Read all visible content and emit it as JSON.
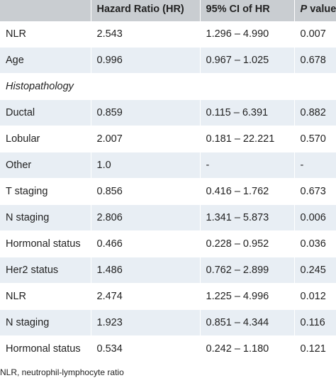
{
  "header": {
    "col0": "",
    "col1": "Hazard Ratio (HR)",
    "col2": "95% CI of HR",
    "col3_italic": "P",
    "col3_rest": " value"
  },
  "rows": [
    {
      "label": "NLR",
      "hr": "2.543",
      "ci": "1.296 – 4.990",
      "p": "0.007"
    },
    {
      "label": "Age",
      "hr": "0.996",
      "ci": "0.967 – 1.025",
      "p": "0.678"
    },
    {
      "section": "Histopathology"
    },
    {
      "label": "Ductal",
      "hr": "0.859",
      "ci": "0.115 – 6.391",
      "p": "0.882"
    },
    {
      "label": "Lobular",
      "hr": "2.007",
      "ci": "0.181 – 22.221",
      "p": "0.570"
    },
    {
      "label": "Other",
      "hr": "1.0",
      "ci": "-",
      "p": "-"
    },
    {
      "label": "T staging",
      "hr": "0.856",
      "ci": "0.416 – 1.762",
      "p": "0.673"
    },
    {
      "label": "N staging",
      "hr": "2.806",
      "ci": "1.341 – 5.873",
      "p": "0.006"
    },
    {
      "label": "Hormonal status",
      "hr": "0.466",
      "ci": "0.228 – 0.952",
      "p": "0.036"
    },
    {
      "label": "Her2 status",
      "hr": "1.486",
      "ci": "0.762 – 2.899",
      "p": "0.245"
    },
    {
      "label": "NLR",
      "hr": "2.474",
      "ci": "1.225 – 4.996",
      "p": "0.012"
    },
    {
      "label": "N staging",
      "hr": "1.923",
      "ci": "0.851 – 4.344",
      "p": "0.116"
    },
    {
      "label": "Hormonal status",
      "hr": "0.534",
      "ci": "0.242 – 1.180",
      "p": "0.121"
    }
  ],
  "footnote": "NLR, neutrophil-lymphocyte ratio",
  "colors": {
    "header_bg": "#c9cdd1",
    "row_alt_bg": "#e8eef4",
    "row_bg": "#ffffff"
  }
}
